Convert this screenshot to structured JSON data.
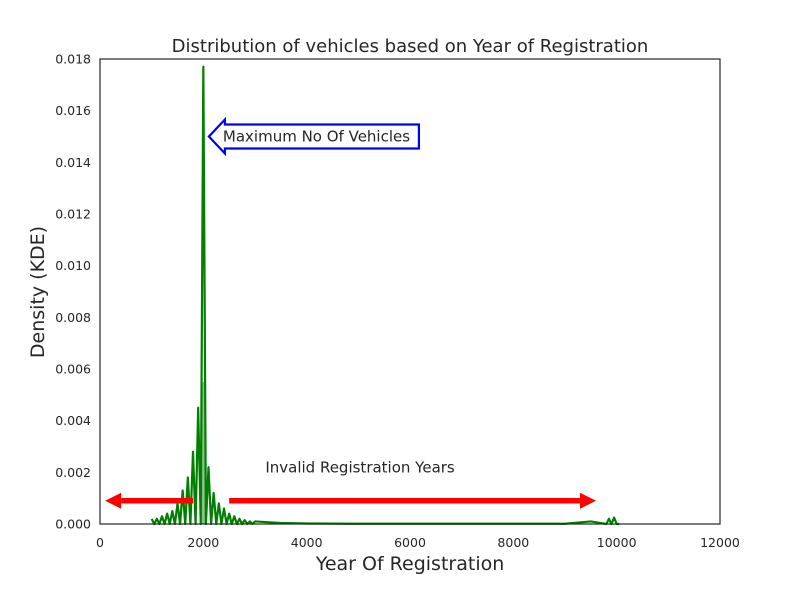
{
  "chart_data": {
    "type": "area",
    "title": "Distribution of vehicles based on Year of Registration",
    "xlabel": "Year Of Registration",
    "ylabel": "Density (KDE)",
    "xlim": [
      0,
      12000
    ],
    "ylim": [
      0,
      0.018
    ],
    "xticks": [
      "0",
      "2000",
      "4000",
      "6000",
      "8000",
      "10000",
      "12000"
    ],
    "yticks": [
      "0.000",
      "0.002",
      "0.004",
      "0.006",
      "0.008",
      "0.010",
      "0.012",
      "0.014",
      "0.016",
      "0.018"
    ],
    "grid": false,
    "colors": {
      "kde_line": "#008000",
      "hist_fill": "#8fbf8f",
      "annotation_arrow": "#ff0000",
      "callout_border": "#0000ff"
    },
    "histogram": [
      {
        "x0": 1960,
        "x1": 2040,
        "value": 0.0055
      }
    ],
    "kde_line": {
      "x": [
        1000,
        1050,
        1100,
        1150,
        1200,
        1250,
        1300,
        1350,
        1400,
        1450,
        1500,
        1550,
        1600,
        1650,
        1700,
        1750,
        1800,
        1850,
        1900,
        1950,
        2000,
        2050,
        2100,
        2150,
        2200,
        2250,
        2300,
        2350,
        2400,
        2450,
        2500,
        2550,
        2600,
        2650,
        2700,
        2750,
        2800,
        2850,
        2900,
        2950,
        3000,
        3500,
        4000,
        5000,
        6000,
        7000,
        8000,
        9000,
        9500,
        9800,
        9850,
        9900,
        9950,
        10000,
        10050
      ],
      "y": [
        0.0002,
        0.0,
        0.0002,
        0.0,
        0.0003,
        0.0,
        0.0004,
        0.0,
        0.0005,
        0.0,
        0.0008,
        0.0,
        0.0013,
        0.0,
        0.0018,
        0.0,
        0.0028,
        0.0,
        0.0045,
        0.0,
        0.0177,
        0.0,
        0.0022,
        0.0,
        0.0012,
        0.0,
        0.0008,
        0.0,
        0.0006,
        0.0,
        0.0004,
        0.0,
        0.0003,
        0.0,
        0.0002,
        0.0,
        0.00015,
        0.0,
        0.0001,
        0.0,
        0.0001,
        4e-05,
        2e-05,
        1e-05,
        1e-05,
        1e-05,
        1e-05,
        1e-05,
        0.0001,
        0.0,
        0.0002,
        0.0,
        0.00025,
        0.0,
        0.0
      ]
    },
    "annotations": [
      {
        "text": "Maximum No Of Vehicles",
        "x": 2500,
        "y": 0.015,
        "arrow": "left",
        "points_to": [
          2050,
          0.015
        ]
      },
      {
        "text": "Invalid Registration Years",
        "x": 3200,
        "y": 0.002
      }
    ],
    "range_arrows": [
      {
        "from": 1800,
        "to": 100,
        "y": 0.0009
      },
      {
        "from": 2500,
        "to": 9600,
        "y": 0.0009
      }
    ]
  }
}
